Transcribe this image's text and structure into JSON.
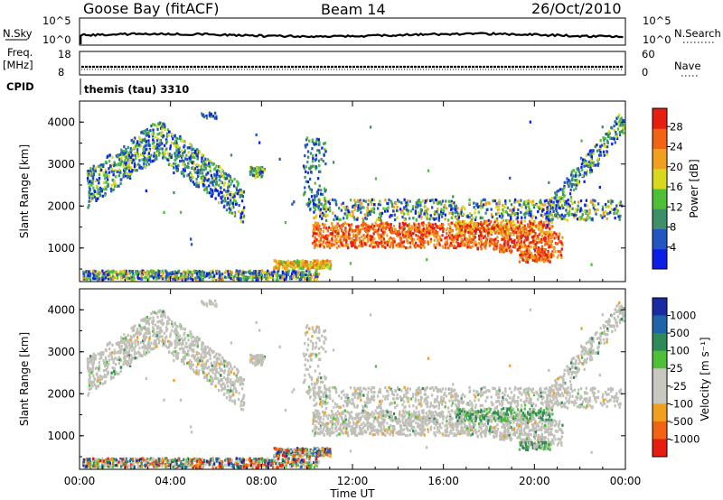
{
  "header": {
    "station": "Goose Bay (fitACF)",
    "beam": "Beam 14",
    "date": "26/Oct/2010"
  },
  "top_panels": {
    "nsky_label": "N.Sky",
    "nsearch_label": "N.Search",
    "nsky_ticks": [
      "10^5",
      "10^0"
    ],
    "nsearch_ticks": [
      "10^5",
      "10^0"
    ],
    "freq_label": "Freq.",
    "freq_unit": "[MHz]",
    "freq_ticks": [
      "18",
      "8"
    ],
    "nave_label": "Nave",
    "nave_ticks": [
      "60",
      "0"
    ],
    "cpid_label": "CPID",
    "cpid_value": "themis (tau) 3310"
  },
  "colors": {
    "power_scale": [
      "#0a1ee6",
      "#2255c2",
      "#3d8f6a",
      "#4fbf3a",
      "#d8d81e",
      "#f0a01e",
      "#f06414",
      "#e61e0f"
    ],
    "velocity_scale": [
      "#e61e0f",
      "#f06414",
      "#f0a01e",
      "#c8c8c0",
      "#c8c8c0",
      "#4fbf3a",
      "#2e8b57",
      "#1e64a8",
      "#1a2aa0"
    ],
    "ground_grey": "#c0c0b8"
  },
  "chart_data": [
    {
      "type": "heatmap",
      "panel": "power",
      "ylabel": "Slant Range [km]",
      "y_ticks": [
        "1000",
        "2000",
        "3000",
        "4000"
      ],
      "ylim": [
        200,
        4500
      ],
      "xlim": [
        "00:00",
        "24:00"
      ],
      "colorbar": {
        "label": "Power [dB]",
        "ticks": [
          "4",
          "8",
          "12",
          "16",
          "20",
          "24",
          "28"
        ],
        "range": [
          0,
          30
        ]
      }
    },
    {
      "type": "heatmap",
      "panel": "velocity",
      "xlabel": "Time UT",
      "x_ticks": [
        "00:00",
        "04:00",
        "08:00",
        "12:00",
        "16:00",
        "20:00",
        "00:00"
      ],
      "ylabel": "Slant Range [km]",
      "y_ticks": [
        "1000",
        "2000",
        "3000",
        "4000"
      ],
      "ylim": [
        200,
        4500
      ],
      "xlim": [
        "00:00",
        "24:00"
      ],
      "colorbar": {
        "label": "Velocity [m s⁻¹]",
        "ticks": [
          "1000",
          "500",
          "100",
          "25",
          "-25",
          "-100",
          "-500",
          "-1000"
        ],
        "range": [
          -1000,
          1000
        ]
      }
    }
  ]
}
